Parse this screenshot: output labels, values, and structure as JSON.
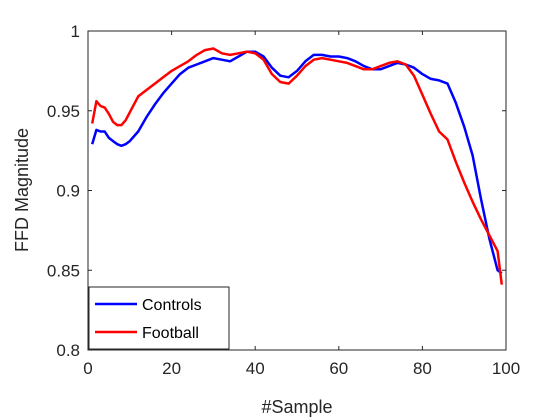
{
  "chart_data": {
    "type": "line",
    "xlabel": "#Sample",
    "ylabel": "FFD Magnitude",
    "xlim": [
      0,
      100
    ],
    "ylim": [
      0.8,
      1.0
    ],
    "xticks": [
      0,
      20,
      40,
      60,
      80,
      100
    ],
    "yticks": [
      0.8,
      0.85,
      0.9,
      0.95,
      1.0
    ],
    "xtick_labels": [
      "0",
      "20",
      "40",
      "60",
      "80",
      "100"
    ],
    "ytick_labels": [
      "0.8",
      "0.85",
      "0.9",
      "0.95",
      "1"
    ],
    "grid": false,
    "legend_position": "bottom-left",
    "series": [
      {
        "name": "Controls",
        "color": "#0000ff",
        "x": [
          1,
          2,
          3,
          4,
          5,
          6,
          7,
          8,
          9,
          10,
          12,
          14,
          16,
          18,
          20,
          22,
          24,
          26,
          28,
          30,
          32,
          34,
          36,
          38,
          40,
          42,
          44,
          46,
          48,
          50,
          52,
          54,
          56,
          58,
          60,
          62,
          64,
          66,
          68,
          70,
          72,
          74,
          76,
          78,
          80,
          82,
          84,
          86,
          88,
          90,
          92,
          94,
          96,
          98,
          99
        ],
        "y": [
          0.929,
          0.938,
          0.937,
          0.937,
          0.933,
          0.931,
          0.929,
          0.928,
          0.929,
          0.931,
          0.937,
          0.946,
          0.954,
          0.961,
          0.967,
          0.973,
          0.977,
          0.979,
          0.981,
          0.983,
          0.982,
          0.981,
          0.984,
          0.987,
          0.987,
          0.984,
          0.977,
          0.972,
          0.971,
          0.975,
          0.981,
          0.985,
          0.985,
          0.984,
          0.984,
          0.983,
          0.981,
          0.978,
          0.976,
          0.976,
          0.978,
          0.98,
          0.979,
          0.977,
          0.973,
          0.97,
          0.969,
          0.967,
          0.955,
          0.94,
          0.922,
          0.895,
          0.87,
          0.85,
          0.848
        ]
      },
      {
        "name": "Football",
        "color": "#ff0000",
        "x": [
          1,
          2,
          3,
          4,
          5,
          6,
          7,
          8,
          9,
          10,
          12,
          14,
          16,
          18,
          20,
          22,
          24,
          26,
          28,
          30,
          32,
          34,
          36,
          38,
          40,
          42,
          44,
          46,
          48,
          50,
          52,
          54,
          56,
          58,
          60,
          62,
          64,
          66,
          68,
          70,
          72,
          74,
          76,
          78,
          80,
          82,
          84,
          86,
          88,
          90,
          92,
          94,
          96,
          98,
          99
        ],
        "y": [
          0.942,
          0.956,
          0.953,
          0.952,
          0.948,
          0.943,
          0.941,
          0.941,
          0.944,
          0.949,
          0.959,
          0.963,
          0.967,
          0.971,
          0.975,
          0.978,
          0.981,
          0.985,
          0.988,
          0.989,
          0.986,
          0.985,
          0.986,
          0.987,
          0.986,
          0.982,
          0.973,
          0.968,
          0.967,
          0.972,
          0.978,
          0.982,
          0.983,
          0.982,
          0.981,
          0.98,
          0.978,
          0.976,
          0.976,
          0.978,
          0.98,
          0.981,
          0.979,
          0.972,
          0.96,
          0.948,
          0.937,
          0.932,
          0.918,
          0.905,
          0.893,
          0.882,
          0.872,
          0.862,
          0.841
        ]
      }
    ]
  }
}
